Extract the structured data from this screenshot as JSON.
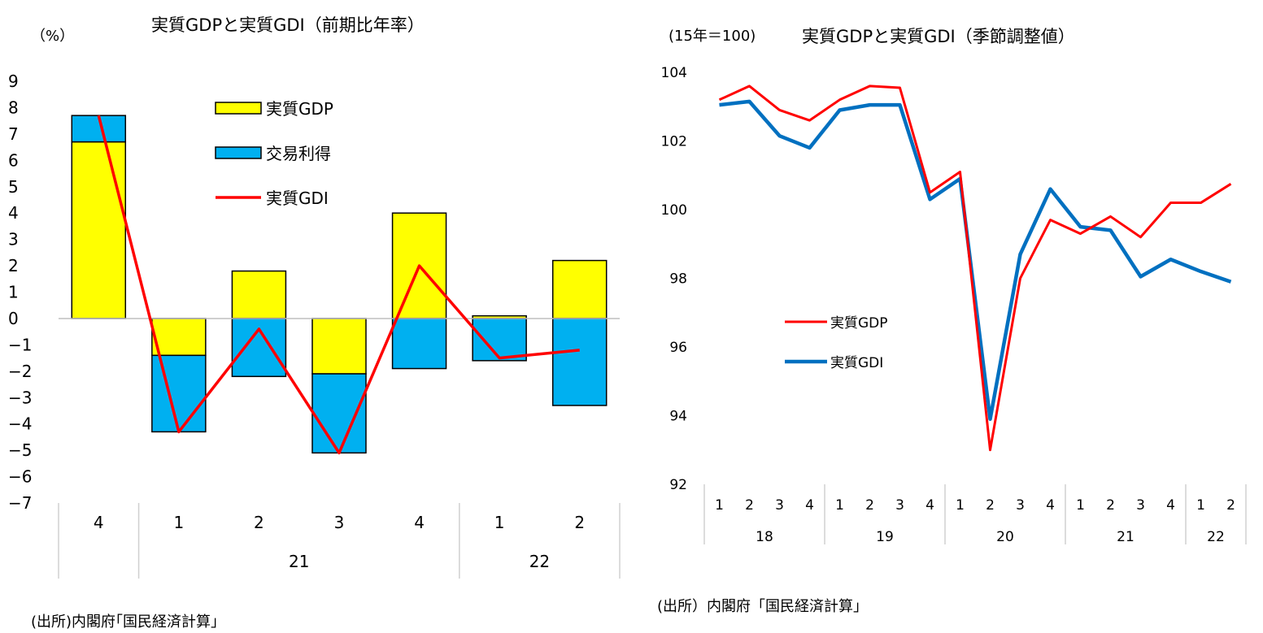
{
  "left_chart": {
    "unit": "（%）",
    "title": "実質GDPと実質GDI（前期比年率）",
    "source": "(出所)内閣府｢国民経済計算｣"
  },
  "right_chart": {
    "unit": "(15年＝100)",
    "title": "実質GDPと実質GDI（季節調整値）",
    "source": "(出所）内閣府「国民経済計算」"
  },
  "colors": {
    "gdp_fill": "#ffff00",
    "tot_fill": "#00b0f0",
    "gdi_line_left": "#ff0000",
    "gdp_line_right": "#ff0000",
    "gdi_line_right": "#0070c0"
  },
  "chart_data": [
    {
      "type": "bar",
      "stacked": true,
      "title": "実質GDPと実質GDI（前期比年率）",
      "ylabel": "（%）",
      "ylim": [
        -7,
        9
      ],
      "yticks": [
        9,
        8,
        7,
        6,
        5,
        4,
        3,
        2,
        1,
        0,
        -1,
        -2,
        -3,
        -4,
        -5,
        -6,
        -7
      ],
      "yticklabels": [
        "9",
        "8",
        "7",
        "6",
        "5",
        "4",
        "3",
        "2",
        "1",
        "0",
        "−1",
        "−2",
        "−3",
        "−4",
        "−5",
        "−6",
        "−7"
      ],
      "categories": [
        "4",
        "1",
        "2",
        "3",
        "4",
        "1",
        "2"
      ],
      "year_groups": [
        {
          "label": "",
          "start": 0,
          "end": 0
        },
        {
          "label": "21",
          "start": 1,
          "end": 4
        },
        {
          "label": "22",
          "start": 5,
          "end": 6
        }
      ],
      "series": [
        {
          "name": "実質GDP",
          "kind": "bar",
          "values": [
            6.7,
            -1.4,
            1.8,
            -2.1,
            4.0,
            0.1,
            2.2
          ]
        },
        {
          "name": "交易利得",
          "kind": "bar",
          "values": [
            1.0,
            -2.9,
            -2.2,
            -3.0,
            -1.9,
            -1.6,
            -3.3
          ]
        },
        {
          "name": "実質GDI",
          "kind": "line",
          "values": [
            7.7,
            -4.3,
            -0.4,
            -5.1,
            2.0,
            -1.5,
            -1.2
          ]
        }
      ],
      "legend": [
        "実質GDP",
        "交易利得",
        "実質GDI"
      ],
      "legend_position": "top-right",
      "grid": false
    },
    {
      "type": "line",
      "title": "実質GDPと実質GDI（季節調整値）",
      "ylabel": "(15年＝100)",
      "ylim": [
        92,
        104
      ],
      "yticks": [
        104,
        102,
        100,
        98,
        96,
        94,
        92
      ],
      "categories": [
        "1",
        "2",
        "3",
        "4",
        "1",
        "2",
        "3",
        "4",
        "1",
        "2",
        "3",
        "4",
        "1",
        "2",
        "3",
        "4",
        "1",
        "2"
      ],
      "year_groups": [
        {
          "label": "18",
          "start": 0,
          "end": 3
        },
        {
          "label": "19",
          "start": 4,
          "end": 7
        },
        {
          "label": "20",
          "start": 8,
          "end": 11
        },
        {
          "label": "21",
          "start": 12,
          "end": 15
        },
        {
          "label": "22",
          "start": 16,
          "end": 17
        }
      ],
      "series": [
        {
          "name": "実質GDP",
          "values": [
            103.2,
            103.6,
            102.9,
            102.6,
            103.2,
            103.6,
            103.55,
            100.5,
            101.1,
            93.0,
            98.0,
            99.7,
            99.3,
            99.8,
            99.2,
            100.2,
            100.2,
            100.75
          ]
        },
        {
          "name": "実質GDI",
          "values": [
            103.05,
            103.15,
            102.15,
            101.8,
            102.9,
            103.05,
            103.05,
            100.3,
            100.9,
            93.9,
            98.7,
            100.6,
            99.5,
            99.4,
            98.05,
            98.55,
            98.2,
            97.9
          ]
        }
      ],
      "legend": [
        "実質GDP",
        "実質GDI"
      ],
      "legend_position": "center-left",
      "grid": false
    }
  ]
}
